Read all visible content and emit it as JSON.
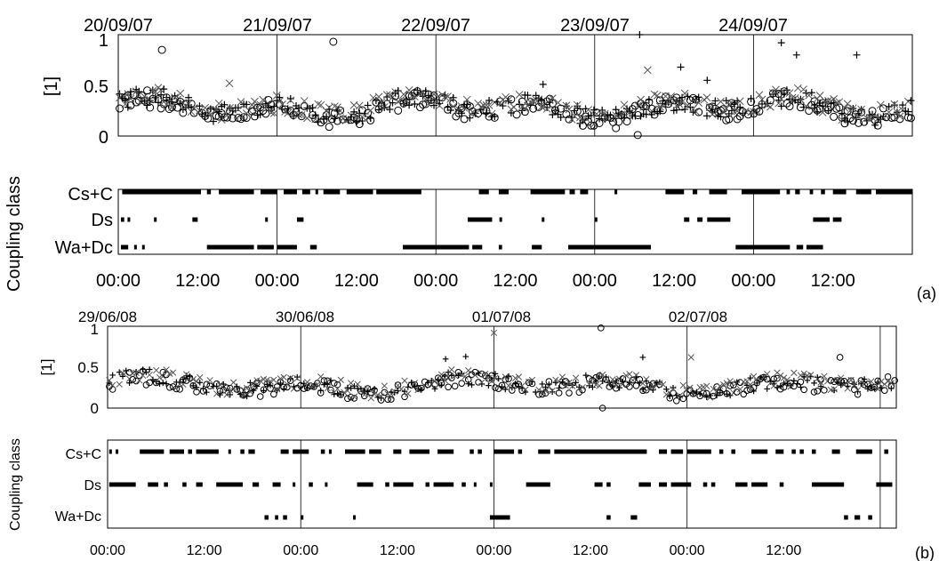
{
  "chart_data": [
    {
      "panel": "a",
      "type": "scatter",
      "panel_label": "(a)",
      "date_labels": [
        "20/09/07",
        "21/09/07",
        "22/09/07",
        "23/09/07",
        "24/09/07"
      ],
      "time_labels": [
        "00:00",
        "12:00",
        "00:00",
        "12:00",
        "00:00",
        "12:00",
        "00:00",
        "12:00",
        "00:00",
        "12:00"
      ],
      "ylabel": "[1]",
      "y_ticks": [
        "0",
        "0.5",
        "1"
      ],
      "ylim": [
        0,
        1
      ],
      "xlim_hours": [
        0,
        120
      ],
      "class_ylabel": "Coupling class",
      "classes": [
        "Cs+C",
        "Ds",
        "Wa+Dc"
      ],
      "marker_series": [
        "circle",
        "plus",
        "cross"
      ],
      "outliers": [
        {
          "t": 6.6,
          "y": 0.85,
          "m": "circle"
        },
        {
          "t": 32.5,
          "y": 0.93,
          "m": "circle"
        },
        {
          "t": 16.8,
          "y": 0.52,
          "m": "cross"
        },
        {
          "t": 78.8,
          "y": 1.0,
          "m": "plus"
        },
        {
          "t": 80.0,
          "y": 0.65,
          "m": "cross"
        },
        {
          "t": 85.0,
          "y": 0.68,
          "m": "plus"
        },
        {
          "t": 89.0,
          "y": 0.55,
          "m": "plus"
        },
        {
          "t": 100.2,
          "y": 0.92,
          "m": "plus"
        },
        {
          "t": 102.5,
          "y": 0.8,
          "m": "plus"
        },
        {
          "t": 111.6,
          "y": 0.8,
          "m": "plus"
        },
        {
          "t": 64.2,
          "y": 0.51,
          "m": "plus"
        },
        {
          "t": 78.5,
          "y": 0.01,
          "m": "circle"
        }
      ],
      "class_segments": {
        "Cs+C": [
          [
            0.6,
            12.5
          ],
          [
            13.4,
            14.0
          ],
          [
            15.2,
            20.5
          ],
          [
            21.5,
            24.0
          ],
          [
            25.0,
            27.0
          ],
          [
            27.8,
            29.0
          ],
          [
            29.8,
            30.2
          ],
          [
            31.0,
            33.5
          ],
          [
            34.5,
            38.5
          ],
          [
            39.0,
            45.8
          ],
          [
            54.5,
            56.0
          ],
          [
            57.5,
            59.0
          ],
          [
            62.3,
            67.5
          ],
          [
            68.2,
            69.0
          ],
          [
            69.8,
            71.0
          ],
          [
            75.0,
            75.2
          ],
          [
            82.7,
            85.5
          ],
          [
            86.8,
            87.5
          ],
          [
            89.3,
            92.0
          ],
          [
            94.2,
            100.0
          ],
          [
            101.0,
            101.5
          ],
          [
            102.3,
            103.0
          ],
          [
            104.5,
            105.0
          ],
          [
            106.2,
            106.8
          ],
          [
            108.0,
            110.0
          ],
          [
            111.5,
            113.8
          ],
          [
            114.5,
            120.0
          ]
        ],
        "Ds": [
          [
            0.4,
            0.9
          ],
          [
            1.4,
            1.7
          ],
          [
            5.4,
            5.8
          ],
          [
            11.2,
            12.0
          ],
          [
            22.2,
            22.6
          ],
          [
            27.0,
            28.0
          ],
          [
            52.8,
            56.5
          ],
          [
            57.6,
            58.0
          ],
          [
            64.0,
            64.4
          ],
          [
            72.0,
            72.4
          ],
          [
            85.5,
            86.3
          ],
          [
            87.5,
            88.3
          ],
          [
            89.0,
            92.5
          ],
          [
            105.0,
            107.5
          ],
          [
            108.0,
            109.3
          ]
        ],
        "Wa+Dc": [
          [
            0.4,
            1.5
          ],
          [
            2.4,
            2.8
          ],
          [
            3.6,
            4.0
          ],
          [
            13.4,
            20.5
          ],
          [
            21.0,
            23.5
          ],
          [
            24.0,
            27.0
          ],
          [
            29.0,
            30.0
          ],
          [
            43.0,
            53.0
          ],
          [
            53.5,
            55.0
          ],
          [
            57.5,
            58.0
          ],
          [
            62.5,
            64.0
          ],
          [
            68.0,
            80.5
          ],
          [
            93.3,
            101.5
          ],
          [
            102.5,
            103.5
          ],
          [
            104.0,
            106.5
          ]
        ]
      }
    },
    {
      "panel": "b",
      "type": "scatter",
      "panel_label": "(b)",
      "date_labels": [
        "29/06/08",
        "30/06/08",
        "01/07/08",
        "02/07/08"
      ],
      "time_labels": [
        "00:00",
        "12:00",
        "00:00",
        "12:00",
        "00:00",
        "12:00",
        "00:00",
        "12:00"
      ],
      "ylabel": "[1]",
      "y_ticks": [
        "0",
        "0.5",
        "1"
      ],
      "ylim": [
        0,
        1
      ],
      "xlim_hours": [
        0,
        98
      ],
      "class_ylabel": "Coupling class",
      "classes": [
        "Cs+C",
        "Ds",
        "Wa+Dc"
      ],
      "marker_series": [
        "circle",
        "plus",
        "cross"
      ],
      "outliers": [
        {
          "t": 48.0,
          "y": 0.92,
          "m": "cross"
        },
        {
          "t": 61.3,
          "y": 0.98,
          "m": "circle"
        },
        {
          "t": 66.5,
          "y": 0.62,
          "m": "plus"
        },
        {
          "t": 72.5,
          "y": 0.62,
          "m": "cross"
        },
        {
          "t": 91.0,
          "y": 0.62,
          "m": "circle"
        },
        {
          "t": 44.5,
          "y": 0.63,
          "m": "plus"
        },
        {
          "t": 42.0,
          "y": 0.6,
          "m": "plus"
        },
        {
          "t": 61.5,
          "y": 0.0,
          "m": "circle"
        }
      ],
      "class_segments": {
        "Cs+C": [
          [
            0.2,
            0.4
          ],
          [
            1.0,
            1.2
          ],
          [
            4.0,
            7.0
          ],
          [
            7.7,
            9.5
          ],
          [
            10.0,
            10.5
          ],
          [
            11.0,
            13.8
          ],
          [
            15.0,
            15.3
          ],
          [
            16.5,
            17.0
          ],
          [
            17.5,
            18.3
          ],
          [
            21.5,
            22.5
          ],
          [
            23.0,
            25.0
          ],
          [
            26.5,
            27.0
          ],
          [
            27.5,
            27.8
          ],
          [
            29.5,
            32.0
          ],
          [
            32.5,
            34.0
          ],
          [
            35.5,
            36.5
          ],
          [
            37.5,
            40.0
          ],
          [
            41.0,
            43.0
          ],
          [
            45.0,
            45.5
          ],
          [
            46.0,
            46.5
          ],
          [
            48.0,
            50.5
          ],
          [
            51.0,
            51.5
          ],
          [
            53.5,
            55.0
          ],
          [
            55.5,
            67.0
          ],
          [
            68.5,
            69.5
          ],
          [
            70.0,
            71.5
          ],
          [
            72.0,
            75.0
          ],
          [
            76.0,
            76.5
          ],
          [
            77.5,
            78.0
          ],
          [
            80.0,
            82.0
          ],
          [
            83.0,
            84.0
          ],
          [
            85.0,
            85.5
          ],
          [
            86.0,
            86.5
          ],
          [
            87.5,
            88.0
          ],
          [
            90.0,
            91.0
          ],
          [
            93.0,
            95.0
          ],
          [
            96.5,
            97.0
          ]
        ],
        "Ds": [
          [
            0.2,
            3.5
          ],
          [
            5.0,
            6.3
          ],
          [
            7.0,
            7.5
          ],
          [
            9.3,
            9.8
          ],
          [
            11.0,
            11.8
          ],
          [
            13.5,
            16.8
          ],
          [
            18.0,
            18.8
          ],
          [
            20.5,
            21.5
          ],
          [
            23.0,
            23.3
          ],
          [
            25.0,
            25.5
          ],
          [
            27.0,
            27.3
          ],
          [
            31.0,
            33.0
          ],
          [
            34.5,
            35.0
          ],
          [
            35.5,
            38.0
          ],
          [
            39.5,
            40.0
          ],
          [
            40.5,
            43.0
          ],
          [
            44.0,
            44.5
          ],
          [
            45.5,
            45.8
          ],
          [
            47.5,
            47.8
          ],
          [
            52.0,
            55.0
          ],
          [
            60.5,
            61.5
          ],
          [
            62.0,
            62.5
          ],
          [
            66.0,
            67.5
          ],
          [
            68.5,
            69.5
          ],
          [
            70.0,
            72.5
          ],
          [
            74.0,
            74.5
          ],
          [
            75.0,
            75.5
          ],
          [
            78.0,
            79.5
          ],
          [
            80.0,
            82.0
          ],
          [
            83.5,
            84.0
          ],
          [
            87.5,
            91.5
          ],
          [
            95.5,
            97.5
          ]
        ],
        "Wa+Dc": [
          [
            19.5,
            20.0
          ],
          [
            20.8,
            21.2
          ],
          [
            21.8,
            22.3
          ],
          [
            24.0,
            24.3
          ],
          [
            30.5,
            30.8
          ],
          [
            47.5,
            50.0
          ],
          [
            62.0,
            62.5
          ],
          [
            65.0,
            65.8
          ],
          [
            91.5,
            92.0
          ],
          [
            92.8,
            93.5
          ],
          [
            94.5,
            95.0
          ]
        ]
      }
    }
  ]
}
